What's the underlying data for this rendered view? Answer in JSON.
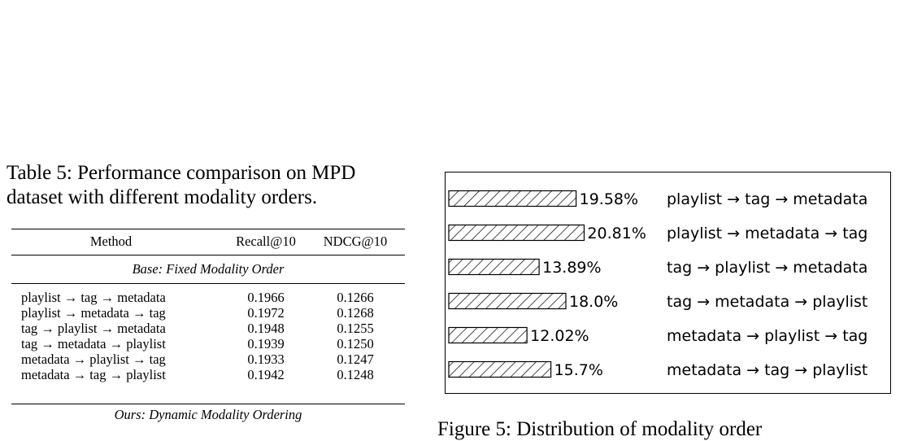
{
  "table": {
    "caption": "Table 5: Performance comparison on MPD dataset with different modality orders.",
    "headers": [
      "Method",
      "Recall@10",
      "NDCG@10"
    ],
    "section_base": "Base: Fixed Modality Order",
    "rows": [
      {
        "method": "playlist → tag → metadata",
        "recall": "0.1966",
        "ndcg": "0.1266"
      },
      {
        "method": "playlist → metadata → tag",
        "recall": "0.1972",
        "ndcg": "0.1268"
      },
      {
        "method": "tag → playlist → metadata",
        "recall": "0.1948",
        "ndcg": "0.1255"
      },
      {
        "method": "tag → metadata → playlist",
        "recall": "0.1939",
        "ndcg": "0.1250"
      },
      {
        "method": "metadata → playlist → tag",
        "recall": "0.1933",
        "ndcg": "0.1247"
      },
      {
        "method": "metadata → tag → playlist",
        "recall": "0.1942",
        "ndcg": "0.1248"
      }
    ],
    "section_ours": "Ours: Dynamic Modality Ordering"
  },
  "figure": {
    "caption": "Figure 5: Distribution of modality order",
    "hatch_color": "#000000"
  },
  "chart_data": {
    "type": "bar",
    "orientation": "horizontal",
    "categories": [
      "playlist → tag → metadata",
      "playlist → metadata → tag",
      "tag → playlist → metadata",
      "tag → metadata → playlist",
      "metadata → playlist → tag",
      "metadata → tag → playlist"
    ],
    "values": [
      19.58,
      20.81,
      13.89,
      18.0,
      12.02,
      15.7
    ],
    "value_labels": [
      "19.58%",
      "20.81%",
      "13.89%",
      "18.0%",
      "12.02%",
      "15.7%"
    ],
    "title": "",
    "xlabel": "",
    "ylabel": "",
    "grid": false,
    "bar_fill": "hatched"
  }
}
